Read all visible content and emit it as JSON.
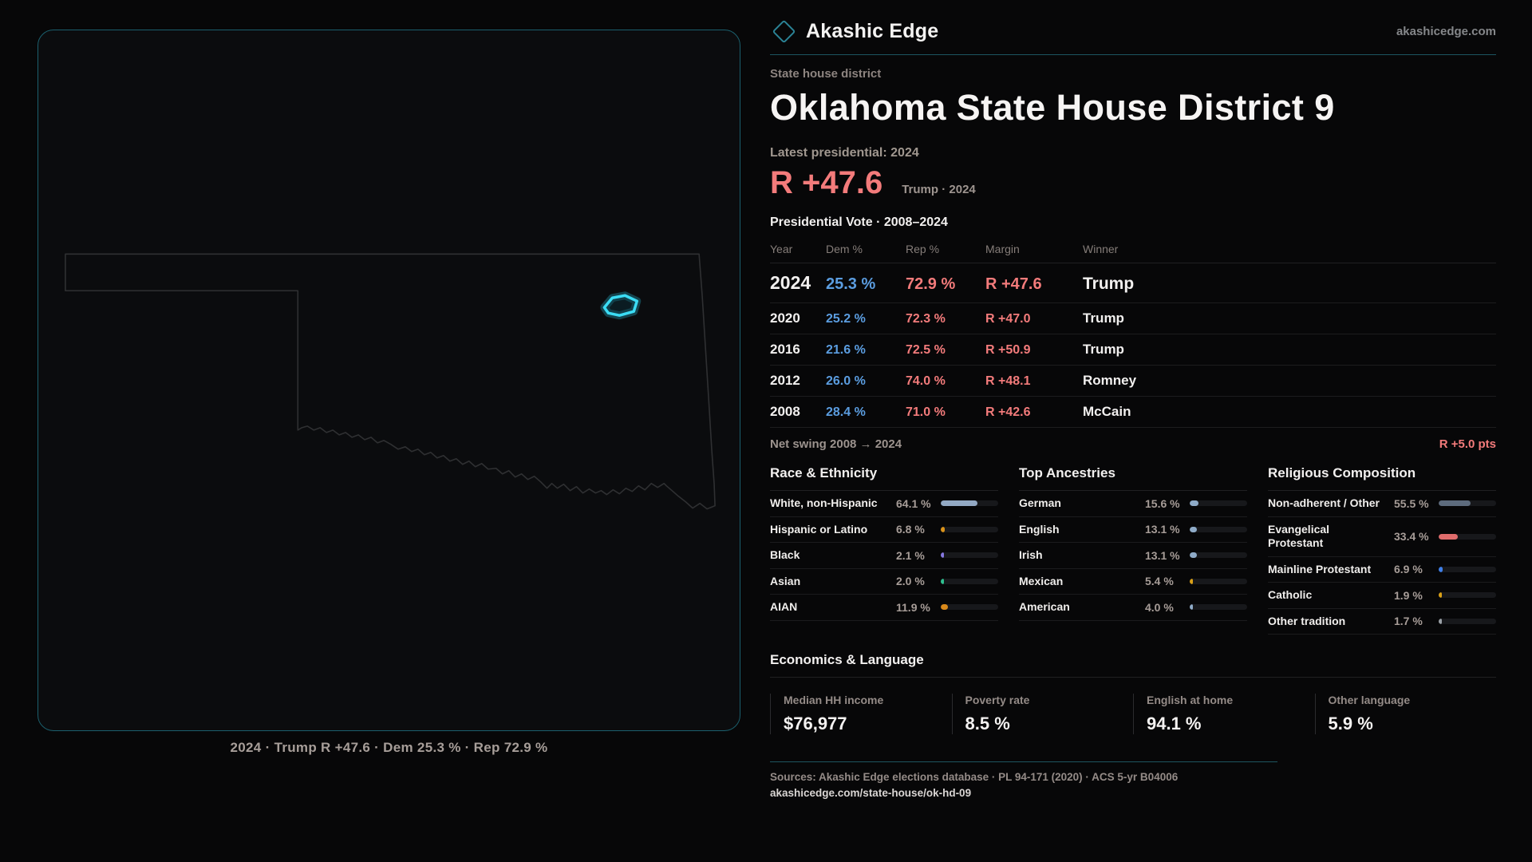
{
  "brand": {
    "name": "Akashic Edge",
    "site": "akashicedge.com",
    "icon": "diamond-outline"
  },
  "page": {
    "kicker": "State house district",
    "title": "Oklahoma State House District 9"
  },
  "hero": {
    "label": "Latest presidential: 2024",
    "margin": "R +47.6",
    "context": "Trump · 2024"
  },
  "vote_table": {
    "title": "Presidential Vote · 2008–2024",
    "columns": [
      "Year",
      "Dem %",
      "Rep %",
      "Margin",
      "Winner"
    ],
    "rows": [
      {
        "year": "2024",
        "dem": "25.3 %",
        "rep": "72.9 %",
        "margin": "R +47.6",
        "winner": "Trump"
      },
      {
        "year": "2020",
        "dem": "25.2 %",
        "rep": "72.3 %",
        "margin": "R +47.0",
        "winner": "Trump"
      },
      {
        "year": "2016",
        "dem": "21.6 %",
        "rep": "72.5 %",
        "margin": "R +50.9",
        "winner": "Trump"
      },
      {
        "year": "2012",
        "dem": "26.0 %",
        "rep": "74.0 %",
        "margin": "R +48.1",
        "winner": "Romney"
      },
      {
        "year": "2008",
        "dem": "28.4 %",
        "rep": "71.0 %",
        "margin": "R +42.6",
        "winner": "McCain"
      }
    ]
  },
  "net_swing": {
    "label": "Net swing 2008 → 2024",
    "value": "R +5.0 pts"
  },
  "demographics": [
    {
      "title": "Race & Ethnicity",
      "items": [
        {
          "label": "White, non-Hispanic",
          "value": "64.1 %",
          "pct": 64.1,
          "color": "#93a9c4"
        },
        {
          "label": "Hispanic or Latino",
          "value": "6.8 %",
          "pct": 6.8,
          "color": "#d9921a"
        },
        {
          "label": "Black",
          "value": "2.1 %",
          "pct": 2.1,
          "color": "#8678e0"
        },
        {
          "label": "Asian",
          "value": "2.0 %",
          "pct": 2.0,
          "color": "#2fbf8f"
        },
        {
          "label": "AIAN",
          "value": "11.9 %",
          "pct": 11.9,
          "color": "#d9891a"
        }
      ]
    },
    {
      "title": "Top Ancestries",
      "items": [
        {
          "label": "German",
          "value": "15.6 %",
          "pct": 15.6,
          "color": "#8fabc8"
        },
        {
          "label": "English",
          "value": "13.1 %",
          "pct": 13.1,
          "color": "#8fabc8"
        },
        {
          "label": "Irish",
          "value": "13.1 %",
          "pct": 13.1,
          "color": "#8fabc8"
        },
        {
          "label": "Mexican",
          "value": "5.4 %",
          "pct": 5.4,
          "color": "#d9a018"
        },
        {
          "label": "American",
          "value": "4.0 %",
          "pct": 4.0,
          "color": "#8fabc8"
        }
      ]
    },
    {
      "title": "Religious Composition",
      "items": [
        {
          "label": "Non-adherent / Other",
          "value": "55.5 %",
          "pct": 55.5,
          "color": "#5d6b7d"
        },
        {
          "label": "Evangelical Protestant",
          "value": "33.4 %",
          "pct": 33.4,
          "color": "#e06c6c"
        },
        {
          "label": "Mainline Protestant",
          "value": "6.9 %",
          "pct": 6.9,
          "color": "#3f7fe8"
        },
        {
          "label": "Catholic",
          "value": "1.9 %",
          "pct": 1.9,
          "color": "#d9a018"
        },
        {
          "label": "Other tradition",
          "value": "1.7 %",
          "pct": 1.7,
          "color": "#9aa0a6"
        }
      ]
    }
  ],
  "economics": {
    "title": "Economics & Language",
    "stats": [
      {
        "label": "Median HH income",
        "value": "$76,977"
      },
      {
        "label": "Poverty rate",
        "value": "8.5 %"
      },
      {
        "label": "English at home",
        "value": "94.1 %"
      },
      {
        "label": "Other language",
        "value": "5.9 %"
      }
    ]
  },
  "map": {
    "caption": "2024 · Trump  R +47.6 · Dem 25.3 % · Rep 72.9 %",
    "district_color": "#3bdcf4",
    "outline_color": "#2f3032"
  },
  "footer": {
    "sources": "Sources: Akashic Edge elections database · PL 94-171 (2020) · ACS 5-yr B04006",
    "permalink": "akashicedge.com/state-house/ok-hd-09"
  },
  "colors": {
    "dem": "#5b9de0",
    "rep": "#f37b7b",
    "accent_teal": "#2b8396",
    "background": "#070708"
  }
}
